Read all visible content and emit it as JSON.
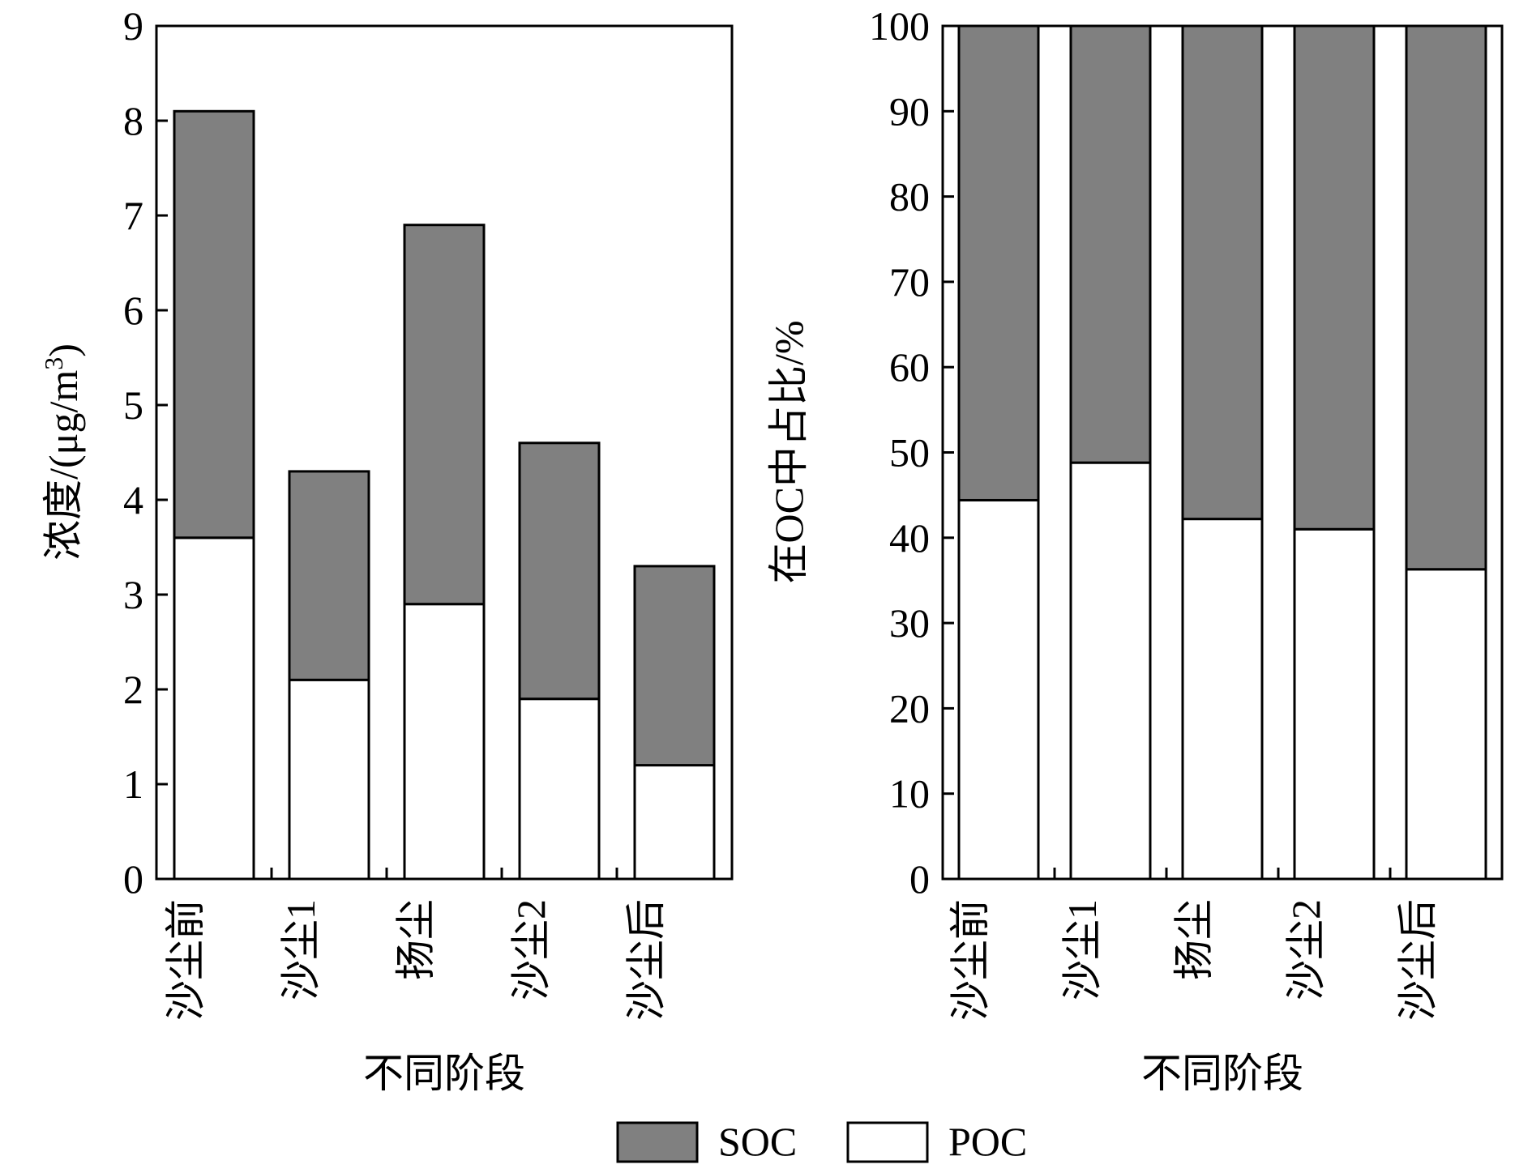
{
  "colors": {
    "soc": "#808080",
    "poc": "#ffffff",
    "stroke": "#000000"
  },
  "legend": [
    {
      "key": "soc",
      "label": "SOC"
    },
    {
      "key": "poc",
      "label": "POC"
    }
  ],
  "chart_data": [
    {
      "type": "bar",
      "stacked": true,
      "categories": [
        "沙尘前",
        "沙尘1",
        "扬尘",
        "沙尘2",
        "沙尘后"
      ],
      "series": [
        {
          "name": "POC",
          "values": [
            3.6,
            2.1,
            2.9,
            1.9,
            1.2
          ]
        },
        {
          "name": "SOC",
          "values": [
            4.5,
            2.2,
            4.0,
            2.7,
            2.1
          ]
        }
      ],
      "xlabel": "不同阶段",
      "ylabel": "浓度/(μg/m³)",
      "ylabel_main": "浓度/(μg/m",
      "ylabel_sup": "3",
      "ylabel_end": ")",
      "ylim": [
        0,
        9
      ],
      "yticks": [
        0,
        1,
        2,
        3,
        4,
        5,
        6,
        7,
        8,
        9
      ],
      "grid": false
    },
    {
      "type": "bar",
      "stacked": true,
      "categories": [
        "沙尘前",
        "沙尘1",
        "扬尘",
        "沙尘2",
        "沙尘后"
      ],
      "series": [
        {
          "name": "POC",
          "values": [
            44.4,
            48.8,
            42.2,
            41.0,
            36.3
          ]
        },
        {
          "name": "SOC",
          "values": [
            55.6,
            51.2,
            57.8,
            59.0,
            63.7
          ]
        }
      ],
      "xlabel": "不同阶段",
      "ylabel": "在OC中占比/%",
      "ylim": [
        0,
        100
      ],
      "yticks": [
        0,
        10,
        20,
        30,
        40,
        50,
        60,
        70,
        80,
        90,
        100
      ],
      "grid": false
    }
  ]
}
